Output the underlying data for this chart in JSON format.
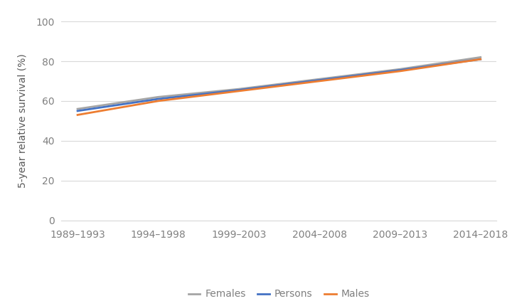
{
  "categories": [
    "1989–1993",
    "1994–1998",
    "1999–2003",
    "2004–2008",
    "2009–2013",
    "2014–2018"
  ],
  "persons": [
    55.0,
    61.0,
    65.5,
    70.5,
    75.5,
    81.0
  ],
  "males": [
    53.0,
    60.0,
    65.0,
    70.0,
    75.0,
    81.0
  ],
  "females": [
    56.0,
    62.0,
    66.0,
    71.0,
    76.0,
    82.0
  ],
  "persons_color": "#4472c4",
  "males_color": "#ed7d31",
  "females_color": "#a5a5a5",
  "ylabel": "5-year relative survival (%)",
  "ylim": [
    0,
    100
  ],
  "yticks": [
    0,
    20,
    40,
    60,
    80,
    100
  ],
  "background_color": "#ffffff",
  "grid_color": "#d9d9d9",
  "line_width": 2.0,
  "legend_labels": [
    "Persons",
    "Males",
    "Females"
  ],
  "font_size": 10,
  "tick_font_size": 10,
  "tick_color": "#808080",
  "ylabel_color": "#595959"
}
